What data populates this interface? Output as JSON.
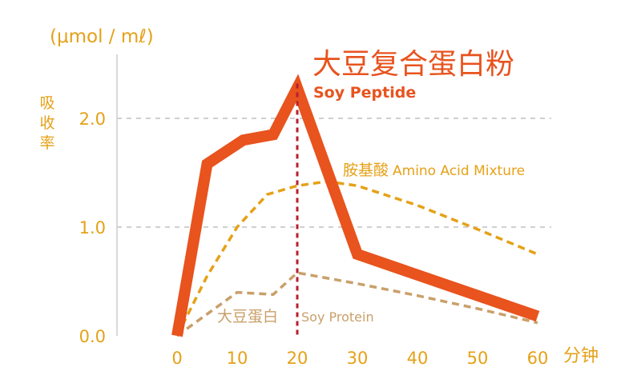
{
  "chart_data": {
    "type": "line",
    "ylabel_unit": "(μmol / mℓ)",
    "ylabel": "吸收率",
    "xlabel": "分钟",
    "x_ticks": [
      "0",
      "10",
      "20",
      "30",
      "40",
      "50",
      "60"
    ],
    "y_ticks": [
      "0.0",
      "1.0",
      "2.0"
    ],
    "xlim": [
      -10,
      62
    ],
    "ylim": [
      0,
      2.6
    ],
    "grid": "horizontal dashed",
    "marker_x": 20,
    "series": [
      {
        "key": "soy_peptide",
        "name_cn": "大豆复合蛋白粉",
        "name_en": "Soy Peptide",
        "color": "#E8531E",
        "style": "solid",
        "x": [
          0,
          5,
          11,
          16,
          20,
          30,
          60
        ],
        "y": [
          0.0,
          1.58,
          1.8,
          1.85,
          2.28,
          0.75,
          0.18
        ]
      },
      {
        "key": "amino_acid",
        "name_cn": "胺基酸",
        "name_en": "Amino Acid Mixture",
        "color": "#E5A117",
        "style": "dashed",
        "x": [
          0,
          5,
          10,
          15,
          20,
          25,
          30,
          40,
          50,
          60
        ],
        "y": [
          0.0,
          0.55,
          1.0,
          1.3,
          1.38,
          1.42,
          1.38,
          1.2,
          0.98,
          0.75
        ]
      },
      {
        "key": "soy_protein",
        "name_cn": "大豆蛋白",
        "name_en": "Soy Protein",
        "color": "#C9A06A",
        "style": "dashed",
        "x": [
          0,
          5,
          10,
          16,
          20,
          30,
          40,
          50,
          60
        ],
        "y": [
          0.0,
          0.2,
          0.4,
          0.38,
          0.58,
          0.48,
          0.37,
          0.25,
          0.12
        ]
      }
    ]
  }
}
